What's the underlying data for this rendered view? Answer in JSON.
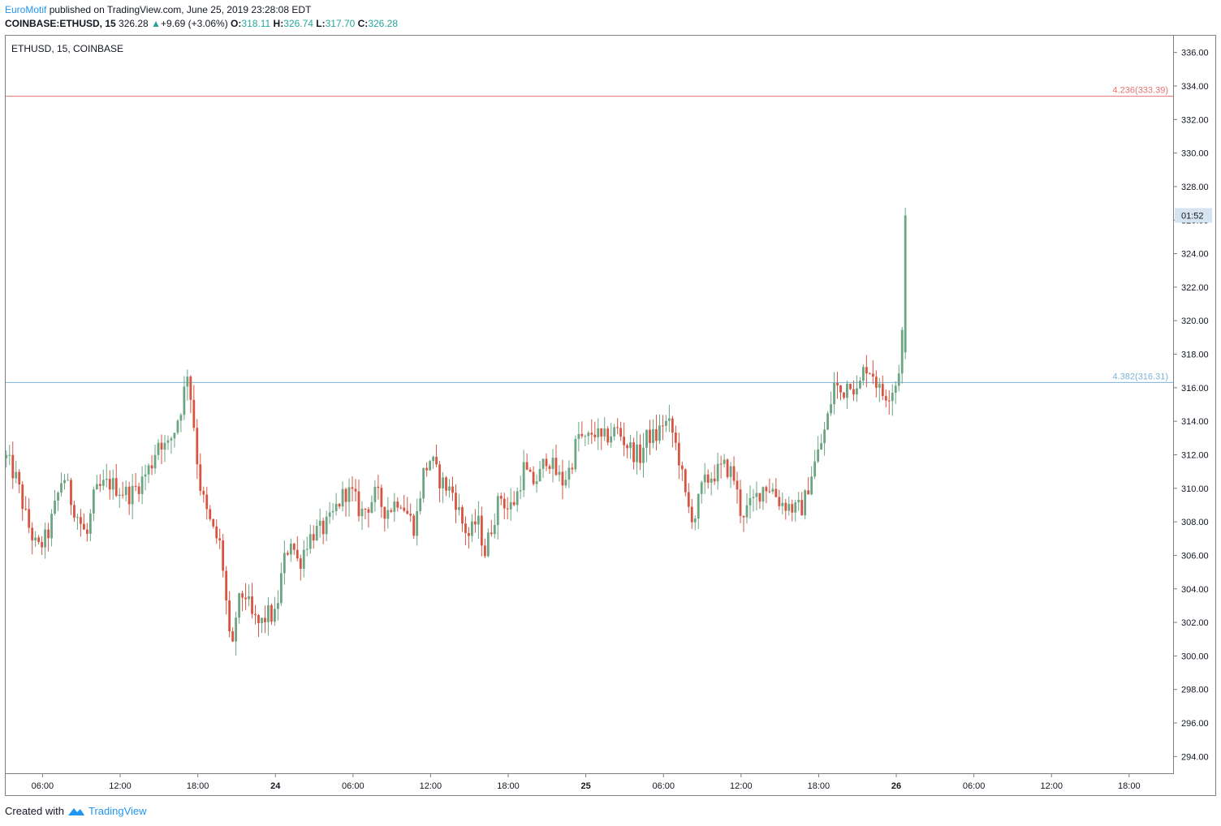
{
  "header": {
    "author": "EuroMotif",
    "published": "published on TradingView.com, June 25, 2019 23:28:08 EDT",
    "symbol": "COINBASE:ETHUSD, 15",
    "last": "326.28",
    "change_arrow": "▲",
    "change": "+9.69 (+3.06%)",
    "o_label": "O:",
    "o": "318.11",
    "h_label": "H:",
    "h": "326.74",
    "l_label": "L:",
    "l": "317.70",
    "c_label": "C:",
    "c": "326.28"
  },
  "footer": {
    "created": "Created with",
    "brand": "TradingView"
  },
  "colors": {
    "up": "#6ba583",
    "down": "#d75442",
    "fib_top": "#e57373",
    "fib_mid": "#7fb3d5",
    "badge": "#d6e4f2",
    "axis": "#7f7f7f"
  },
  "chart_data": {
    "type": "candlestick",
    "title": "ETHUSD, 15, COINBASE",
    "ylim": [
      293,
      337
    ],
    "y_ticks": [
      "294.00",
      "296.00",
      "298.00",
      "300.00",
      "302.00",
      "304.00",
      "306.00",
      "308.00",
      "310.00",
      "312.00",
      "314.00",
      "316.00",
      "318.00",
      "320.00",
      "322.00",
      "324.00",
      "326.00",
      "328.00",
      "330.00",
      "332.00",
      "334.00",
      "336.00"
    ],
    "x_ticks": [
      "06:00",
      "12:00",
      "18:00",
      "24",
      "06:00",
      "12:00",
      "18:00",
      "25",
      "06:00",
      "12:00",
      "18:00",
      "26",
      "06:00",
      "12:00",
      "18:00"
    ],
    "x_tick_bold": [
      false,
      false,
      false,
      true,
      false,
      false,
      false,
      true,
      false,
      false,
      false,
      true,
      false,
      false,
      false
    ],
    "x_tick_hours": [
      6,
      12,
      18,
      24,
      30,
      36,
      42,
      48,
      54,
      60,
      66,
      72,
      78,
      84,
      90
    ],
    "x_range_hours": [
      3.15,
      93.4
    ],
    "hlines": [
      {
        "label": "4.236(333.39)",
        "value": 333.39,
        "color": "#e57373"
      },
      {
        "label": "4.382(316.31)",
        "value": 316.31,
        "color": "#7fb3d5"
      }
    ],
    "last_price_badge": "01:52",
    "last_price": 326.28,
    "anchors": [
      [
        3.2,
        311.8
      ],
      [
        4.0,
        310.5
      ],
      [
        4.8,
        308.0
      ],
      [
        5.6,
        306.3
      ],
      [
        6.4,
        307.2
      ],
      [
        7.0,
        309.0
      ],
      [
        7.6,
        310.9
      ],
      [
        8.2,
        309.3
      ],
      [
        8.8,
        308.2
      ],
      [
        9.4,
        307.0
      ],
      [
        10.0,
        309.6
      ],
      [
        10.6,
        310.1
      ],
      [
        11.2,
        310.3
      ],
      [
        12.0,
        309.9
      ],
      [
        12.8,
        309.6
      ],
      [
        13.6,
        310.4
      ],
      [
        14.4,
        311.4
      ],
      [
        15.0,
        313.0
      ],
      [
        15.6,
        312.3
      ],
      [
        16.2,
        313.5
      ],
      [
        16.8,
        315.1
      ],
      [
        17.2,
        317.0
      ],
      [
        17.6,
        314.6
      ],
      [
        18.1,
        310.5
      ],
      [
        18.6,
        308.7
      ],
      [
        19.2,
        307.4
      ],
      [
        19.8,
        306.5
      ],
      [
        20.2,
        303.2
      ],
      [
        20.6,
        299.6
      ],
      [
        21.0,
        302.8
      ],
      [
        21.6,
        303.9
      ],
      [
        22.2,
        302.3
      ],
      [
        22.8,
        301.8
      ],
      [
        23.4,
        302.5
      ],
      [
        24.0,
        302.3
      ],
      [
        24.6,
        305.5
      ],
      [
        25.2,
        307.0
      ],
      [
        25.8,
        305.4
      ],
      [
        26.4,
        306.8
      ],
      [
        27.0,
        307.4
      ],
      [
        27.6,
        307.5
      ],
      [
        28.2,
        308.0
      ],
      [
        28.8,
        309.0
      ],
      [
        29.4,
        309.8
      ],
      [
        30.0,
        309.6
      ],
      [
        30.6,
        308.5
      ],
      [
        31.2,
        309.0
      ],
      [
        31.8,
        309.7
      ],
      [
        32.4,
        308.7
      ],
      [
        33.0,
        308.9
      ],
      [
        33.6,
        309.5
      ],
      [
        34.2,
        308.5
      ],
      [
        34.8,
        307.6
      ],
      [
        35.4,
        310.8
      ],
      [
        36.0,
        311.8
      ],
      [
        36.6,
        310.6
      ],
      [
        37.2,
        310.1
      ],
      [
        37.8,
        309.7
      ],
      [
        38.4,
        308.0
      ],
      [
        39.0,
        307.1
      ],
      [
        39.6,
        308.2
      ],
      [
        40.2,
        306.2
      ],
      [
        40.8,
        308.0
      ],
      [
        41.4,
        309.6
      ],
      [
        42.0,
        308.7
      ],
      [
        42.6,
        309.4
      ],
      [
        43.2,
        311.2
      ],
      [
        43.8,
        310.3
      ],
      [
        44.4,
        310.7
      ],
      [
        45.0,
        312.0
      ],
      [
        45.6,
        311.0
      ],
      [
        46.2,
        310.4
      ],
      [
        46.8,
        311.2
      ],
      [
        47.4,
        313.2
      ],
      [
        48.0,
        312.7
      ],
      [
        48.6,
        313.5
      ],
      [
        49.2,
        312.8
      ],
      [
        49.8,
        313.2
      ],
      [
        50.4,
        313.5
      ],
      [
        51.0,
        312.8
      ],
      [
        51.6,
        312.2
      ],
      [
        52.2,
        311.9
      ],
      [
        52.8,
        313.2
      ],
      [
        53.4,
        313.0
      ],
      [
        54.0,
        314.0
      ],
      [
        54.6,
        313.6
      ],
      [
        55.2,
        311.8
      ],
      [
        55.8,
        309.0
      ],
      [
        56.4,
        308.2
      ],
      [
        57.0,
        310.1
      ],
      [
        57.6,
        310.7
      ],
      [
        58.2,
        311.0
      ],
      [
        58.8,
        311.3
      ],
      [
        59.4,
        310.8
      ],
      [
        60.0,
        308.5
      ],
      [
        60.6,
        308.8
      ],
      [
        61.2,
        309.5
      ],
      [
        61.8,
        310.2
      ],
      [
        62.4,
        310.0
      ],
      [
        63.0,
        309.2
      ],
      [
        63.6,
        309.0
      ],
      [
        64.2,
        308.7
      ],
      [
        64.8,
        308.9
      ],
      [
        65.4,
        310.8
      ],
      [
        66.0,
        312.2
      ],
      [
        66.6,
        313.8
      ],
      [
        67.2,
        316.2
      ],
      [
        67.8,
        315.6
      ],
      [
        68.4,
        316.6
      ],
      [
        69.0,
        315.6
      ],
      [
        69.6,
        317.4
      ],
      [
        70.2,
        316.9
      ],
      [
        70.8,
        315.6
      ],
      [
        71.4,
        315.7
      ],
      [
        72.0,
        316.3
      ],
      [
        72.4,
        318.1
      ],
      [
        72.75,
        326.28
      ]
    ]
  }
}
